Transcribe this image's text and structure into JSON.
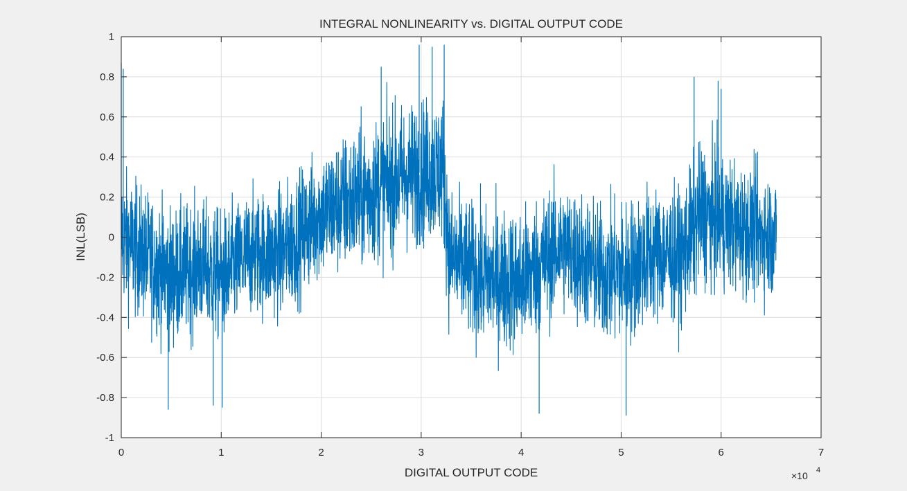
{
  "figure": {
    "background": "#f0f0f0",
    "axes_background": "#ffffff",
    "grid_color": "#dcdcdc",
    "line_color": "#0072bd"
  },
  "chart_data": {
    "type": "line",
    "title": "INTEGRAL NONLINEARITY vs. DIGITAL OUTPUT CODE",
    "xlabel": "DIGITAL OUTPUT CODE",
    "ylabel": "INL(LSB)",
    "x_exponent_label": "×10",
    "x_exponent_power": "4",
    "xlim": [
      0,
      70000
    ],
    "ylim": [
      -1,
      1
    ],
    "grid": true,
    "x_ticks": [
      0,
      1,
      2,
      3,
      4,
      5,
      6,
      7
    ],
    "x_tick_labels": [
      "0",
      "1",
      "2",
      "3",
      "4",
      "5",
      "6",
      "7"
    ],
    "y_ticks": [
      -1,
      -0.8,
      -0.6,
      -0.4,
      -0.2,
      0,
      0.2,
      0.4,
      0.6,
      0.8,
      1
    ],
    "y_tick_labels": [
      "-1",
      "-0.8",
      "-0.6",
      "-0.4",
      "-0.2",
      "0",
      "0.2",
      "0.4",
      "0.6",
      "0.8",
      "1"
    ],
    "series": [
      {
        "x_range": [
          0,
          65535
        ],
        "envelope_x": [
          0,
          2000,
          5000,
          8000,
          10000,
          13000,
          16000,
          20000,
          24000,
          28000,
          32200,
          32800,
          36000,
          40000,
          44000,
          48000,
          50500,
          53000,
          56000,
          58000,
          62000,
          65535
        ],
        "envelope_center": [
          0.0,
          -0.08,
          -0.2,
          -0.14,
          -0.2,
          -0.08,
          -0.08,
          0.12,
          0.2,
          0.3,
          0.35,
          -0.1,
          -0.2,
          -0.22,
          -0.04,
          -0.18,
          -0.18,
          -0.08,
          -0.1,
          0.12,
          0.04,
          0.0
        ],
        "envelope_halfwidth": [
          0.38,
          0.36,
          0.38,
          0.36,
          0.36,
          0.34,
          0.36,
          0.36,
          0.4,
          0.4,
          0.4,
          0.38,
          0.38,
          0.4,
          0.36,
          0.38,
          0.4,
          0.38,
          0.36,
          0.4,
          0.36,
          0.34
        ],
        "spikes": [
          {
            "x": 0,
            "y": 0.87
          },
          {
            "x": 200,
            "y": 0.84
          },
          {
            "x": 4700,
            "y": -0.86
          },
          {
            "x": 9200,
            "y": -0.84
          },
          {
            "x": 10100,
            "y": -0.85
          },
          {
            "x": 26000,
            "y": 0.85
          },
          {
            "x": 29800,
            "y": 0.96
          },
          {
            "x": 31100,
            "y": 0.95
          },
          {
            "x": 32300,
            "y": 0.96
          },
          {
            "x": 41800,
            "y": -0.88
          },
          {
            "x": 50500,
            "y": -0.89
          },
          {
            "x": 57300,
            "y": 0.8
          },
          {
            "x": 59700,
            "y": 0.78
          },
          {
            "x": 60000,
            "y": 0.74
          }
        ]
      }
    ]
  }
}
